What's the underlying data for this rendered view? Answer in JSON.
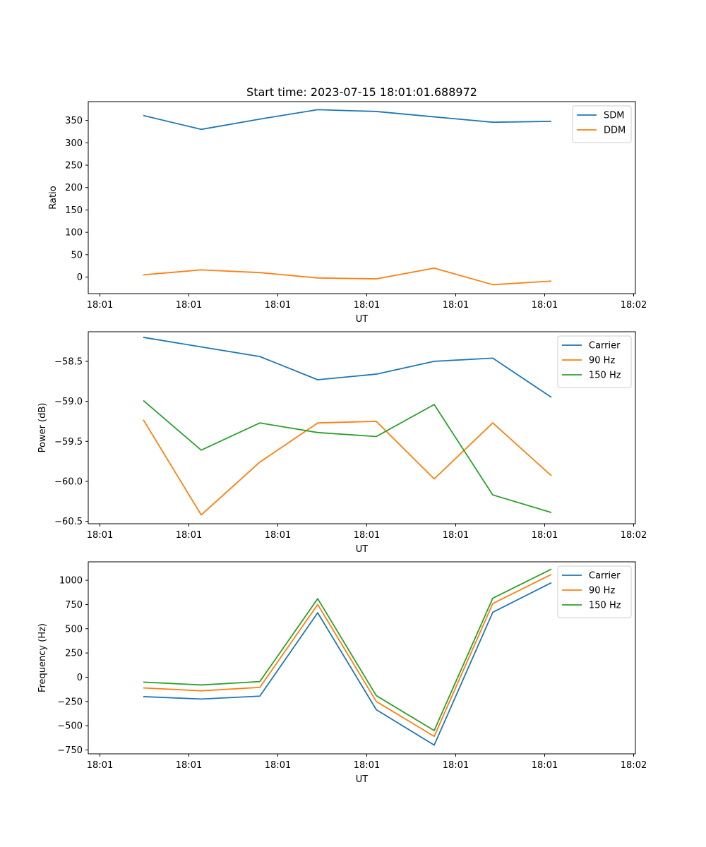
{
  "chart_data": [
    {
      "type": "line",
      "title": "Start time: 2023-07-15 18:01:01.688972",
      "xlabel": "UT",
      "ylabel": "Ratio",
      "x_ticks": [
        "18:01",
        "18:01",
        "18:01",
        "18:01",
        "18:01",
        "18:01",
        "18:02"
      ],
      "ylim": [
        -37,
        392
      ],
      "y_ticks": [
        0,
        50,
        100,
        150,
        200,
        250,
        300,
        350
      ],
      "legend_position": "top-right",
      "series": [
        {
          "name": "SDM",
          "color": "#1f77b4",
          "values": [
            361,
            330,
            353,
            374,
            370,
            358,
            346,
            348
          ]
        },
        {
          "name": "DDM",
          "color": "#ff7f0e",
          "values": [
            5,
            16,
            10,
            -2,
            -4,
            20,
            -17,
            -9
          ]
        }
      ]
    },
    {
      "type": "line",
      "title": "",
      "xlabel": "UT",
      "ylabel": "Power (dB)",
      "x_ticks": [
        "18:01",
        "18:01",
        "18:01",
        "18:01",
        "18:01",
        "18:01",
        "18:02"
      ],
      "ylim": [
        -60.53,
        -58.13
      ],
      "y_ticks": [
        -60.5,
        -60.0,
        -59.5,
        -59.0,
        -58.5
      ],
      "y_tick_labels": [
        "−60.5",
        "−60.0",
        "−59.5",
        "−59.0",
        "−58.5"
      ],
      "legend_position": "top-right",
      "series": [
        {
          "name": "Carrier",
          "color": "#1f77b4",
          "values": [
            -58.2,
            -58.32,
            -58.44,
            -58.73,
            -58.66,
            -58.5,
            -58.46,
            -58.95
          ]
        },
        {
          "name": "90 Hz",
          "color": "#ff7f0e",
          "values": [
            -59.23,
            -60.42,
            -59.76,
            -59.27,
            -59.25,
            -59.97,
            -59.27,
            -59.93
          ]
        },
        {
          "name": "150 Hz",
          "color": "#2ca02c",
          "values": [
            -58.99,
            -59.61,
            -59.27,
            -59.39,
            -59.44,
            -59.04,
            -60.17,
            -60.39
          ]
        }
      ]
    },
    {
      "type": "line",
      "title": "",
      "xlabel": "UT",
      "ylabel": "Frequency (Hz)",
      "x_ticks": [
        "18:01",
        "18:01",
        "18:01",
        "18:01",
        "18:01",
        "18:01",
        "18:02"
      ],
      "ylim": [
        -790,
        1190
      ],
      "y_ticks": [
        -750,
        -500,
        -250,
        0,
        250,
        500,
        750,
        1000
      ],
      "y_tick_labels": [
        "−750",
        "−500",
        "−250",
        "0",
        "250",
        "500",
        "750",
        "1000"
      ],
      "legend_position": "top-right",
      "series": [
        {
          "name": "Carrier",
          "color": "#1f77b4",
          "values": [
            -200,
            -225,
            -195,
            665,
            -335,
            -700,
            670,
            975
          ]
        },
        {
          "name": "90 Hz",
          "color": "#ff7f0e",
          "values": [
            -110,
            -140,
            -105,
            750,
            -250,
            -610,
            760,
            1060
          ]
        },
        {
          "name": "150 Hz",
          "color": "#2ca02c",
          "values": [
            -50,
            -80,
            -45,
            810,
            -190,
            -550,
            815,
            1115
          ]
        }
      ]
    }
  ]
}
